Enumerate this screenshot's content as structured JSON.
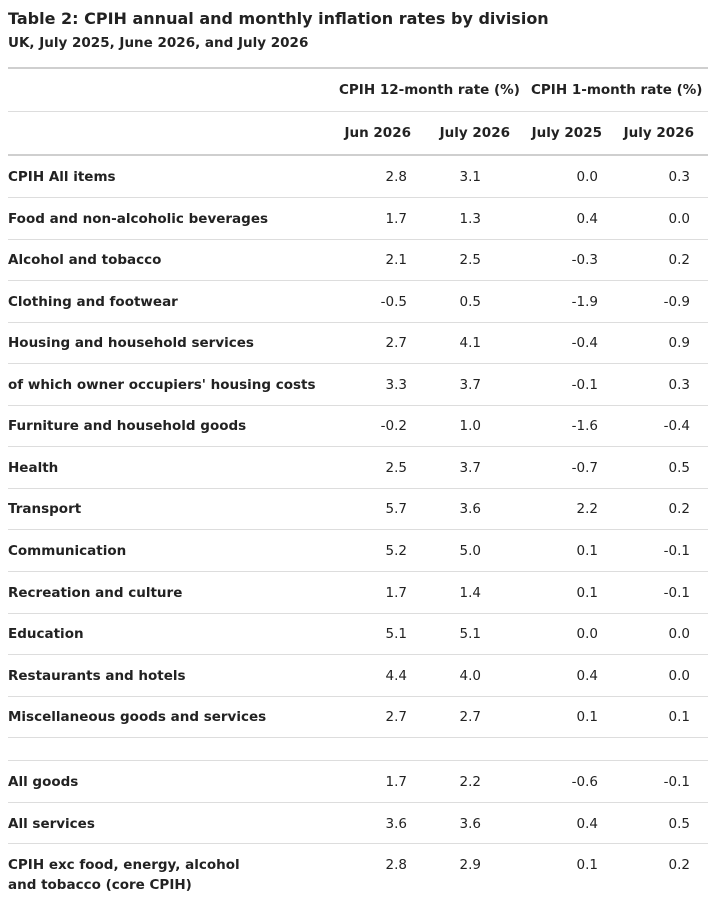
{
  "table": {
    "title": "Table 2: CPIH annual and monthly inflation rates by division",
    "subtitle": "UK, July 2025, June 2026, and July 2026",
    "group_headers": [
      "CPIH 12-month rate (%)",
      "CPIH 1-month rate (%)"
    ],
    "column_headers": [
      "Jun 2026",
      "July 2026",
      "July 2025",
      "July 2026"
    ],
    "rows": [
      {
        "label": "CPIH All items",
        "values": [
          "2.8",
          "3.1",
          "0.0",
          "0.3"
        ]
      },
      {
        "label": "Food and non-alcoholic beverages",
        "values": [
          "1.7",
          "1.3",
          "0.4",
          "0.0"
        ]
      },
      {
        "label": "Alcohol and tobacco",
        "values": [
          "2.1",
          "2.5",
          "-0.3",
          "0.2"
        ]
      },
      {
        "label": "Clothing and footwear",
        "values": [
          "-0.5",
          "0.5",
          "-1.9",
          "-0.9"
        ]
      },
      {
        "label": "Housing and household services",
        "values": [
          "2.7",
          "4.1",
          "-0.4",
          "0.9"
        ]
      },
      {
        "label": "of which owner occupiers' housing costs",
        "values": [
          "3.3",
          "3.7",
          "-0.1",
          "0.3"
        ]
      },
      {
        "label": "Furniture and household goods",
        "values": [
          "-0.2",
          "1.0",
          "-1.6",
          "-0.4"
        ]
      },
      {
        "label": "Health",
        "values": [
          "2.5",
          "3.7",
          "-0.7",
          "0.5"
        ]
      },
      {
        "label": "Transport",
        "values": [
          "5.7",
          "3.6",
          "2.2",
          "0.2"
        ]
      },
      {
        "label": "Communication",
        "values": [
          "5.2",
          "5.0",
          "0.1",
          "-0.1"
        ]
      },
      {
        "label": "Recreation and culture",
        "values": [
          "1.7",
          "1.4",
          "0.1",
          "-0.1"
        ]
      },
      {
        "label": "Education",
        "values": [
          "5.1",
          "5.1",
          "0.0",
          "0.0"
        ]
      },
      {
        "label": "Restaurants and hotels",
        "values": [
          "4.4",
          "4.0",
          "0.4",
          "0.0"
        ]
      },
      {
        "label": "Miscellaneous goods and services",
        "values": [
          "2.7",
          "2.7",
          "0.1",
          "0.1"
        ]
      },
      {
        "label": "All goods",
        "values": [
          "1.7",
          "2.2",
          "-0.6",
          "-0.1"
        ]
      },
      {
        "label": "All services",
        "values": [
          "3.6",
          "3.6",
          "0.4",
          "0.5"
        ]
      },
      {
        "label": "CPIH exc food, energy, alcohol and tobacco (core CPIH)",
        "values": [
          "2.8",
          "2.9",
          "0.1",
          "0.2"
        ]
      }
    ]
  }
}
